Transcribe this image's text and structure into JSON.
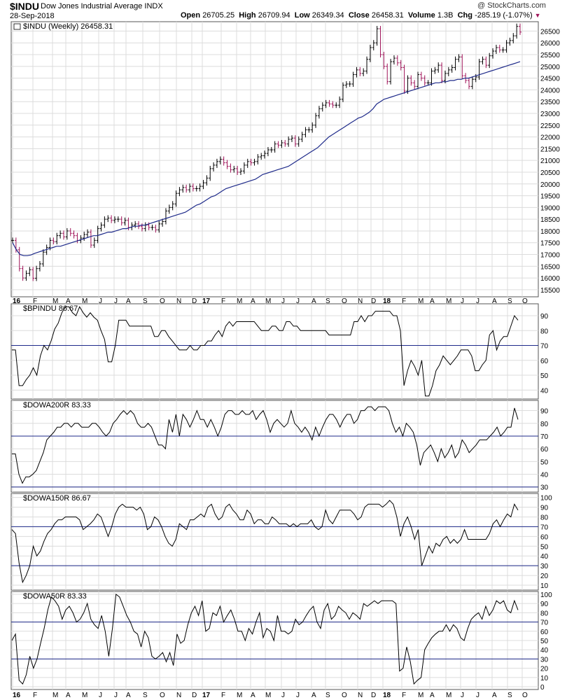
{
  "header": {
    "symbol": "$INDU",
    "name": "Dow Jones Industrial Average",
    "exchange": "INDX",
    "date": "28-Sep-2018",
    "open_label": "Open",
    "open": "26705.25",
    "high_label": "High",
    "high": "26709.94",
    "low_label": "Low",
    "low": "26349.34",
    "close_label": "Close",
    "close": "26458.31",
    "volume_label": "Volume",
    "volume": "1.3B",
    "chg_label": "Chg",
    "chg": "-285.19 (-1.07%)",
    "brand": "@ StockCharts.com"
  },
  "colors": {
    "up": "#000000",
    "down": "#a0155a",
    "ma": "#1e2a8a",
    "ref": "#1e2a8a",
    "grid": "#dcdcdc"
  },
  "chart_data": [
    {
      "type": "ohlc",
      "title": "$INDU (Weekly) 26458.31",
      "moving_average_color": "#1e2a8a",
      "x_tick_labels": [
        "16",
        "F",
        "M",
        "A",
        "M",
        "J",
        "J",
        "A",
        "S",
        "O",
        "N",
        "D",
        "17",
        "F",
        "M",
        "A",
        "M",
        "J",
        "J",
        "A",
        "S",
        "O",
        "N",
        "D",
        "18",
        "F",
        "M",
        "A",
        "M",
        "J",
        "J",
        "A",
        "S",
        "O"
      ],
      "y_ticks": [
        15500,
        16000,
        16500,
        17000,
        17500,
        18000,
        18500,
        19000,
        19500,
        20000,
        20500,
        21000,
        21500,
        22000,
        22500,
        23000,
        23500,
        24000,
        24500,
        25000,
        25500,
        26000,
        26500
      ],
      "ylim": [
        15200,
        26900
      ],
      "close": [
        17600,
        17200,
        16400,
        16000,
        16200,
        16350,
        15990,
        16400,
        16600,
        17100,
        17300,
        17600,
        17550,
        17800,
        17900,
        17750,
        18000,
        17900,
        17800,
        17600,
        17700,
        17850,
        17950,
        17400,
        17600,
        18100,
        18250,
        18500,
        18550,
        18450,
        18500,
        18500,
        18350,
        18450,
        18150,
        18250,
        18300,
        18200,
        18100,
        18250,
        18150,
        18150,
        18050,
        18300,
        18400,
        18850,
        19000,
        19150,
        19600,
        19750,
        19850,
        19750,
        19900,
        19800,
        19800,
        19900,
        20050,
        20250,
        20650,
        20800,
        20950,
        21050,
        20900,
        20750,
        20600,
        20650,
        20500,
        20550,
        20800,
        20950,
        20900,
        20950,
        21150,
        21200,
        21300,
        21450,
        21450,
        21700,
        21650,
        21750,
        21700,
        21900,
        21950,
        21700,
        21900,
        22100,
        22300,
        22300,
        22500,
        22900,
        23200,
        23350,
        23450,
        23400,
        23350,
        23350,
        23600,
        24200,
        24250,
        24250,
        24650,
        24850,
        24700,
        24800,
        25300,
        25800,
        26000,
        26600,
        25500,
        25000,
        24350,
        25200,
        25350,
        25150,
        24950,
        23950,
        24500,
        24300,
        24150,
        24650,
        24500,
        24300,
        24300,
        24800,
        24850,
        25050,
        24400,
        24700,
        24850,
        24950,
        25300,
        25400,
        24600,
        24400,
        24150,
        24450,
        24550,
        25200,
        25300,
        25050,
        25450,
        25650,
        25800,
        25700,
        25700,
        26000,
        26100,
        26300,
        26700,
        26458
      ],
      "ma_values": [
        17500,
        17200,
        17000,
        16950,
        16950,
        16980,
        17050,
        17100,
        17150,
        17200,
        17250,
        17300,
        17350,
        17350,
        17400,
        17450,
        17500,
        17550,
        17600,
        17650,
        17700,
        17750,
        17800,
        17800,
        17850,
        17900,
        17950,
        17950,
        18000,
        18050,
        18100,
        18100,
        18150,
        18200,
        18200,
        18250,
        18250,
        18300,
        18350,
        18400,
        18450,
        18500,
        18550,
        18600,
        18650,
        18700,
        18750,
        18800,
        18900,
        19000,
        19100,
        19150,
        19250,
        19350,
        19450,
        19500,
        19600,
        19700,
        19800,
        19850,
        19900,
        19950,
        20000,
        20050,
        20100,
        20150,
        20200,
        20300,
        20400,
        20450,
        20500,
        20550,
        20600,
        20650,
        20700,
        20750,
        20850,
        20950,
        21050,
        21150,
        21250,
        21350,
        21450,
        21550,
        21700,
        21850,
        22000,
        22100,
        22200,
        22300,
        22400,
        22500,
        22600,
        22700,
        22800,
        22850,
        22950,
        23050,
        23200,
        23400,
        23500,
        23600,
        23650,
        23700,
        23750,
        23800,
        23850,
        23900,
        23950,
        24000,
        24050,
        24100,
        24150,
        24200,
        24250,
        24300,
        24300,
        24350,
        24350,
        24400,
        24400,
        24450,
        24450,
        24500,
        24500,
        24550,
        24600,
        24650,
        24700,
        24750,
        24800,
        24850,
        24900,
        24950,
        25000,
        25050,
        25100,
        25150,
        25200
      ]
    },
    {
      "type": "line",
      "title": "$BPINDU 86.67",
      "ylim": [
        34,
        98
      ],
      "y_ticks": [
        40,
        50,
        60,
        70,
        80,
        90
      ],
      "reference_lines": [
        70
      ],
      "values": [
        67,
        67,
        43,
        43,
        47,
        50,
        55,
        50,
        63,
        70,
        67,
        73,
        81,
        85,
        92,
        96,
        96,
        92,
        90,
        96,
        92,
        89,
        92,
        89,
        87,
        80,
        74,
        59,
        59,
        70,
        87,
        87,
        87,
        83,
        83,
        83,
        83,
        83,
        83,
        83,
        76,
        76,
        80,
        80,
        76,
        73,
        70,
        67,
        67,
        67,
        70,
        67,
        67,
        70,
        70,
        73,
        73,
        77,
        80,
        76,
        83,
        86,
        83,
        86,
        86,
        86,
        86,
        86,
        86,
        83,
        80,
        80,
        80,
        83,
        83,
        80,
        80,
        86,
        86,
        83,
        83,
        80,
        80,
        80,
        80,
        80,
        80,
        80,
        80,
        77,
        77,
        77,
        77,
        77,
        77,
        77,
        86,
        86,
        90,
        86,
        90,
        90,
        93,
        93,
        93,
        93,
        93,
        90,
        90,
        80,
        43,
        53,
        60,
        56,
        50,
        60,
        36,
        36,
        43,
        53,
        57,
        63,
        60,
        57,
        60,
        63,
        67,
        67,
        67,
        63,
        53,
        53,
        57,
        60,
        77,
        80,
        67,
        73,
        76,
        76,
        83,
        90,
        87
      ]
    },
    {
      "type": "line",
      "title": "$DOWA200R 83.33",
      "ylim": [
        26,
        98
      ],
      "y_ticks": [
        30,
        40,
        50,
        60,
        70,
        80,
        90
      ],
      "reference_lines": [
        70,
        30
      ],
      "values": [
        56,
        56,
        40,
        33,
        38,
        38,
        40,
        43,
        50,
        57,
        67,
        70,
        73,
        77,
        77,
        80,
        80,
        77,
        80,
        80,
        77,
        77,
        77,
        80,
        80,
        77,
        73,
        70,
        73,
        80,
        83,
        87,
        90,
        87,
        90,
        87,
        80,
        77,
        77,
        80,
        77,
        70,
        63,
        63,
        60,
        83,
        73,
        87,
        70,
        87,
        83,
        77,
        83,
        90,
        83,
        83,
        77,
        83,
        77,
        70,
        77,
        87,
        90,
        90,
        87,
        87,
        90,
        87,
        87,
        90,
        83,
        87,
        90,
        83,
        73,
        80,
        83,
        80,
        77,
        80,
        90,
        80,
        77,
        73,
        77,
        73,
        67,
        77,
        70,
        77,
        83,
        87,
        87,
        83,
        77,
        83,
        87,
        87,
        80,
        83,
        90,
        90,
        93,
        93,
        90,
        93,
        93,
        93,
        90,
        80,
        73,
        77,
        70,
        80,
        77,
        73,
        63,
        47,
        57,
        60,
        63,
        57,
        50,
        60,
        53,
        57,
        63,
        53,
        57,
        67,
        63,
        57,
        60,
        63,
        67,
        67,
        67,
        70,
        73,
        77,
        70,
        73,
        77,
        77,
        92,
        83
      ]
    },
    {
      "type": "line",
      "title": "$DOWA150R 86.67",
      "ylim": [
        5,
        104
      ],
      "y_ticks": [
        10,
        20,
        30,
        40,
        50,
        60,
        70,
        80,
        90,
        100
      ],
      "reference_lines": [
        70,
        30
      ],
      "values": [
        67,
        63,
        33,
        13,
        20,
        30,
        50,
        40,
        45,
        55,
        63,
        67,
        73,
        77,
        77,
        80,
        80,
        80,
        80,
        77,
        67,
        70,
        73,
        77,
        83,
        80,
        70,
        60,
        70,
        83,
        90,
        93,
        90,
        90,
        90,
        87,
        90,
        83,
        67,
        70,
        80,
        77,
        70,
        60,
        53,
        50,
        57,
        73,
        70,
        67,
        77,
        77,
        80,
        83,
        80,
        90,
        93,
        83,
        77,
        80,
        90,
        93,
        87,
        83,
        77,
        77,
        87,
        83,
        73,
        77,
        77,
        73,
        73,
        80,
        77,
        73,
        73,
        73,
        70,
        73,
        70,
        73,
        73,
        73,
        77,
        70,
        67,
        70,
        87,
        77,
        73,
        80,
        87,
        87,
        87,
        87,
        83,
        77,
        80,
        90,
        93,
        93,
        93,
        93,
        90,
        93,
        97,
        93,
        80,
        60,
        73,
        80,
        70,
        57,
        67,
        30,
        40,
        50,
        43,
        53,
        50,
        57,
        60,
        53,
        57,
        53,
        57,
        67,
        57,
        57,
        57,
        57,
        57,
        57,
        63,
        73,
        77,
        70,
        77,
        83,
        80,
        93,
        87
      ]
    },
    {
      "type": "line",
      "title": "$DOWA50R 83.33",
      "ylim": [
        -3,
        103
      ],
      "y_ticks": [
        0,
        10,
        20,
        30,
        40,
        50,
        60,
        70,
        80,
        90,
        100
      ],
      "reference_lines": [
        70,
        30
      ],
      "x_tick_labels": [
        "16",
        "F",
        "M",
        "A",
        "M",
        "J",
        "J",
        "A",
        "S",
        "O",
        "N",
        "D",
        "17",
        "F",
        "M",
        "A",
        "M",
        "J",
        "J",
        "A",
        "S",
        "O",
        "N",
        "D",
        "18",
        "F",
        "M",
        "A",
        "M",
        "J",
        "J",
        "A",
        "S",
        "O"
      ],
      "values": [
        50,
        57,
        7,
        3,
        13,
        33,
        20,
        30,
        47,
        63,
        83,
        97,
        93,
        87,
        73,
        83,
        87,
        80,
        70,
        73,
        80,
        90,
        73,
        67,
        63,
        77,
        60,
        33,
        63,
        100,
        97,
        87,
        77,
        70,
        60,
        57,
        43,
        60,
        53,
        33,
        30,
        33,
        37,
        27,
        37,
        23,
        57,
        47,
        50,
        67,
        80,
        87,
        77,
        93,
        60,
        63,
        80,
        77,
        87,
        70,
        77,
        83,
        73,
        60,
        60,
        50,
        63,
        57,
        70,
        80,
        53,
        63,
        60,
        50,
        77,
        60,
        60,
        57,
        60,
        73,
        67,
        70,
        77,
        83,
        87,
        70,
        63,
        83,
        90,
        73,
        77,
        87,
        83,
        80,
        73,
        80,
        77,
        73,
        90,
        87,
        90,
        93,
        90,
        93,
        93,
        93,
        93,
        90,
        17,
        20,
        43,
        27,
        3,
        7,
        10,
        40,
        47,
        53,
        57,
        60,
        60,
        67,
        60,
        67,
        63,
        53,
        50,
        63,
        73,
        77,
        80,
        73,
        87,
        77,
        83,
        93,
        90,
        93,
        83,
        80,
        93,
        83
      ]
    }
  ]
}
